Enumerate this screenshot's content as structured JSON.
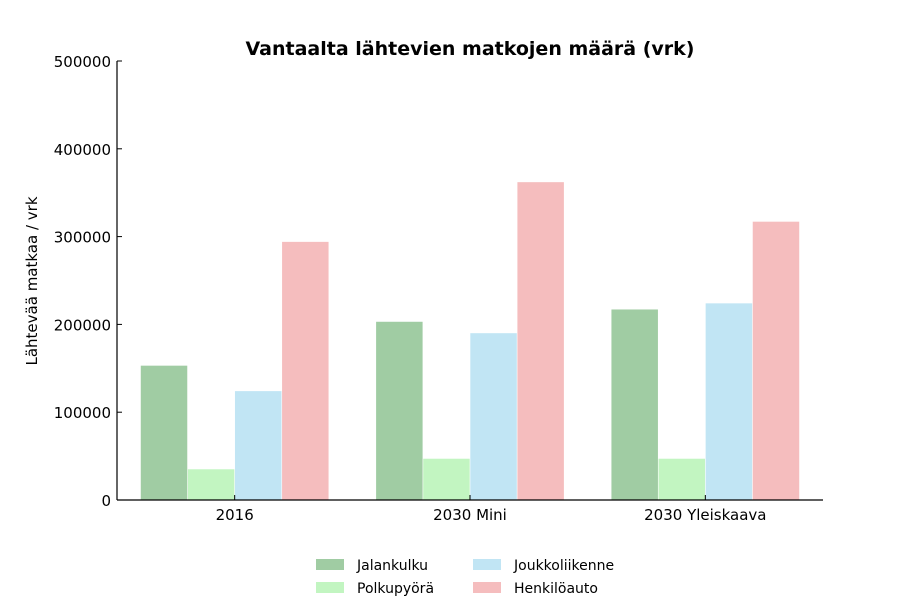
{
  "chart_data": {
    "type": "bar",
    "title": "Vantaalta lähtevien matkojen määrä (vrk)",
    "xlabel": "",
    "ylabel": "Lähtevää matkaa / vrk",
    "ylim": [
      0,
      500000
    ],
    "yticks": [
      0,
      100000,
      200000,
      300000,
      400000,
      500000
    ],
    "ytick_labels": [
      "0",
      "100000",
      "200000",
      "300000",
      "400000",
      "500000"
    ],
    "categories": [
      "2016",
      "2030 Mini",
      "2030 Yleiskaava"
    ],
    "series": [
      {
        "name": "Jalankulku",
        "color": "#a0cca3",
        "values": [
          153000,
          203000,
          217000
        ]
      },
      {
        "name": "Polkupyörä",
        "color": "#c2f5c1",
        "values": [
          35000,
          47000,
          47000
        ]
      },
      {
        "name": "Joukkoliikenne",
        "color": "#c1e5f4",
        "values": [
          124000,
          190000,
          224000
        ]
      },
      {
        "name": "Henkilöauto",
        "color": "#f5bdbe",
        "values": [
          294000,
          362000,
          317000
        ]
      }
    ],
    "legend_position": "bottom-center",
    "grid": false
  }
}
